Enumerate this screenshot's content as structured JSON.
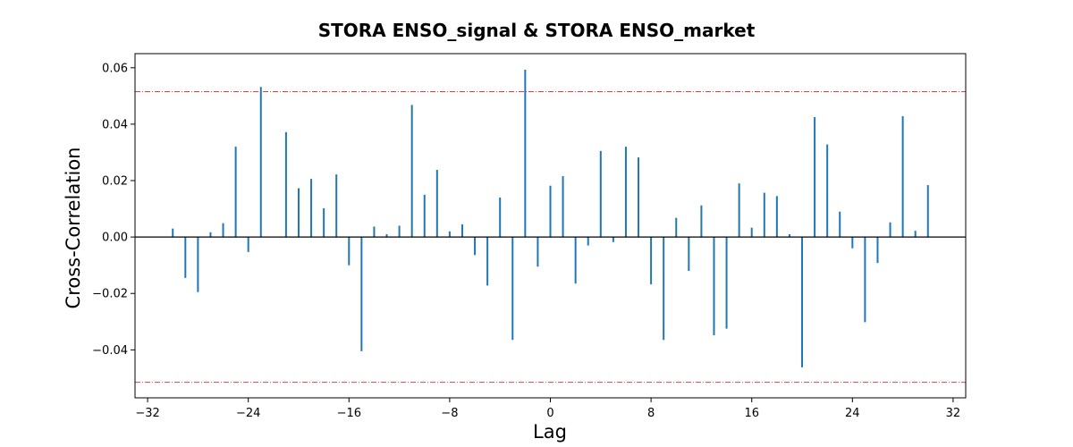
{
  "chart_data": {
    "type": "bar",
    "title": "STORA ENSO_signal & STORA ENSO_market",
    "xlabel": "Lag",
    "ylabel": "Cross-Correlation",
    "xlim": [
      -33,
      33
    ],
    "ylim": [
      -0.057,
      0.065
    ],
    "xticks": [
      -32,
      -24,
      -16,
      -8,
      0,
      8,
      16,
      24,
      32
    ],
    "yticks": [
      -0.04,
      -0.02,
      0.0,
      0.02,
      0.04,
      0.06
    ],
    "xtick_labels": [
      "−32",
      "−24",
      "−16",
      "−8",
      "0",
      "8",
      "16",
      "24",
      "32"
    ],
    "ytick_labels": [
      "−0.04",
      "−0.02",
      "0.00",
      "0.02",
      "0.04",
      "0.06"
    ],
    "confidence_bounds": [
      0.0515,
      -0.0515
    ],
    "grid": false,
    "colors": {
      "bars": "#1f77b4",
      "bounds": "#d62728",
      "zero_line": "#000000"
    },
    "series": [
      {
        "x": [
          -30,
          -29,
          -28,
          -27,
          -26,
          -25,
          -24,
          -23,
          -22,
          -21,
          -20,
          -19,
          -18,
          -17,
          -16,
          -15,
          -14,
          -13,
          -12,
          -11,
          -10,
          -9,
          -8,
          -7,
          -6,
          -5,
          -4,
          -3,
          -2,
          -1,
          0,
          1,
          2,
          3,
          4,
          5,
          6,
          7,
          8,
          9,
          10,
          11,
          12,
          13,
          14,
          15,
          16,
          17,
          18,
          19,
          20,
          21,
          22,
          23,
          24,
          25,
          26,
          27,
          28,
          29,
          30
        ],
        "values": [
          0.003,
          -0.0145,
          -0.0195,
          0.0017,
          0.0049,
          0.032,
          -0.0053,
          0.0532,
          0.0,
          0.0372,
          0.0173,
          0.0206,
          0.0102,
          0.0222,
          -0.01,
          -0.0405,
          0.0037,
          0.001,
          0.004,
          0.0468,
          0.015,
          0.0238,
          0.002,
          0.0045,
          -0.0064,
          -0.0172,
          0.014,
          -0.0365,
          0.0593,
          -0.0105,
          0.0182,
          0.0216,
          -0.0165,
          -0.003,
          0.0305,
          -0.0018,
          0.032,
          0.0282,
          -0.0168,
          -0.0365,
          0.0068,
          -0.012,
          0.0112,
          -0.0348,
          -0.0325,
          0.019,
          0.0033,
          0.0157,
          0.0145,
          0.001,
          -0.0462,
          0.0425,
          0.0328,
          0.009,
          -0.004,
          -0.0302,
          -0.0092,
          0.0052,
          0.0428,
          0.0022,
          0.0184
        ]
      }
    ]
  }
}
